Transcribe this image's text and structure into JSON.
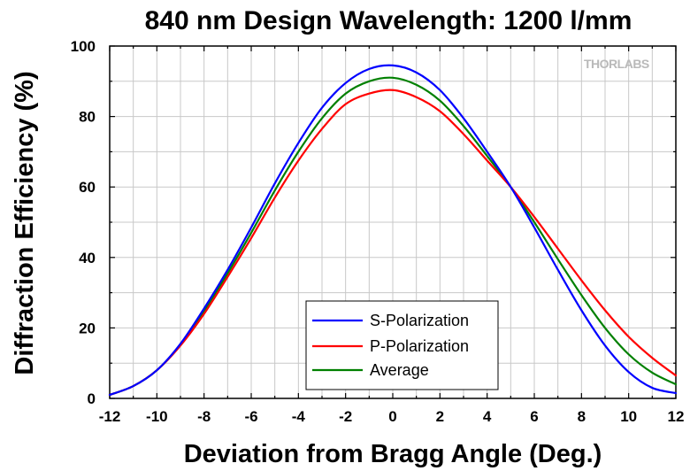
{
  "chart_data": {
    "type": "line",
    "title": "840 nm Design Wavelength: 1200 l/mm",
    "xlabel": "Deviation from Bragg Angle (Deg.)",
    "ylabel": "Diffraction Efficiency (%)",
    "xlim": [
      -12,
      12
    ],
    "ylim": [
      0,
      100
    ],
    "xticks": [
      -12,
      -10,
      -8,
      -6,
      -4,
      -2,
      0,
      2,
      4,
      6,
      8,
      10,
      12
    ],
    "yticks": [
      0,
      20,
      40,
      60,
      80,
      100
    ],
    "grid": true,
    "legend_position": "bottom-center",
    "watermark": "THORLABS",
    "x": [
      -12,
      -11,
      -10,
      -9,
      -8,
      -7,
      -6,
      -5,
      -4,
      -3,
      -2,
      -1,
      0,
      1,
      2,
      3,
      4,
      5,
      6,
      7,
      8,
      9,
      10,
      11,
      12
    ],
    "series": [
      {
        "name": "S-Polarization",
        "color": "#0000ff",
        "values": [
          1.0,
          3.5,
          8.0,
          15.5,
          25.5,
          36.5,
          48.5,
          61.0,
          72.5,
          82.5,
          89.5,
          93.5,
          94.5,
          92.5,
          87.5,
          79.5,
          70.0,
          60.0,
          48.5,
          36.5,
          25.0,
          15.0,
          7.5,
          3.0,
          1.5
        ]
      },
      {
        "name": "P-Polarization",
        "color": "#ff0000",
        "values": [
          1.0,
          3.5,
          8.0,
          15.0,
          24.0,
          34.5,
          45.5,
          57.0,
          67.5,
          76.5,
          83.5,
          86.5,
          87.5,
          85.5,
          81.5,
          75.0,
          67.5,
          60.0,
          51.5,
          42.5,
          33.5,
          25.0,
          17.5,
          11.5,
          6.5
        ]
      },
      {
        "name": "Average",
        "color": "#008000",
        "values": [
          1.0,
          3.5,
          8.0,
          15.2,
          24.8,
          35.5,
          47.0,
          59.0,
          70.0,
          79.5,
          86.5,
          90.0,
          91.0,
          89.0,
          84.5,
          77.3,
          68.8,
          60.0,
          50.0,
          39.5,
          29.3,
          20.0,
          12.5,
          7.3,
          4.0
        ]
      }
    ]
  }
}
